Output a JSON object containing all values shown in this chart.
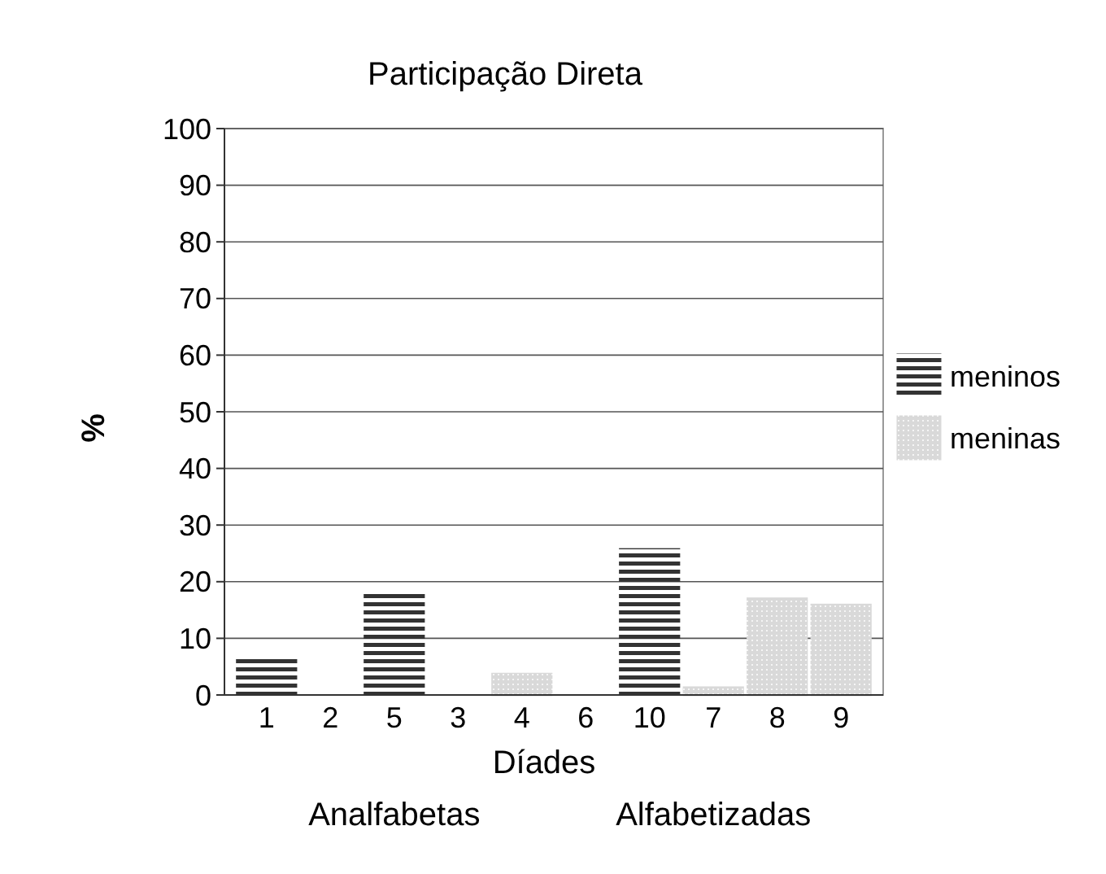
{
  "chart_data": {
    "type": "bar",
    "title": "Participação Direta",
    "xlabel": "Díades",
    "ylabel": "%",
    "categories": [
      "1",
      "2",
      "5",
      "3",
      "4",
      "6",
      "10",
      "7",
      "8",
      "9"
    ],
    "series": [
      {
        "name": "meninos",
        "color": "#333333",
        "values": [
          6.6,
          null,
          18.1,
          null,
          null,
          null,
          25.7,
          null,
          null,
          null
        ]
      },
      {
        "name": "meninas",
        "color": "#d9d9d9",
        "values": [
          null,
          null,
          null,
          null,
          3.7,
          null,
          null,
          1.3,
          17,
          15.9
        ]
      }
    ],
    "ylim": [
      0,
      100
    ],
    "yticks": [
      0,
      10,
      20,
      30,
      40,
      50,
      60,
      70,
      80,
      90,
      100
    ],
    "grid": "y",
    "legend": "right",
    "annotations": [
      "Analfabetas",
      "Alfabetizadas"
    ]
  }
}
